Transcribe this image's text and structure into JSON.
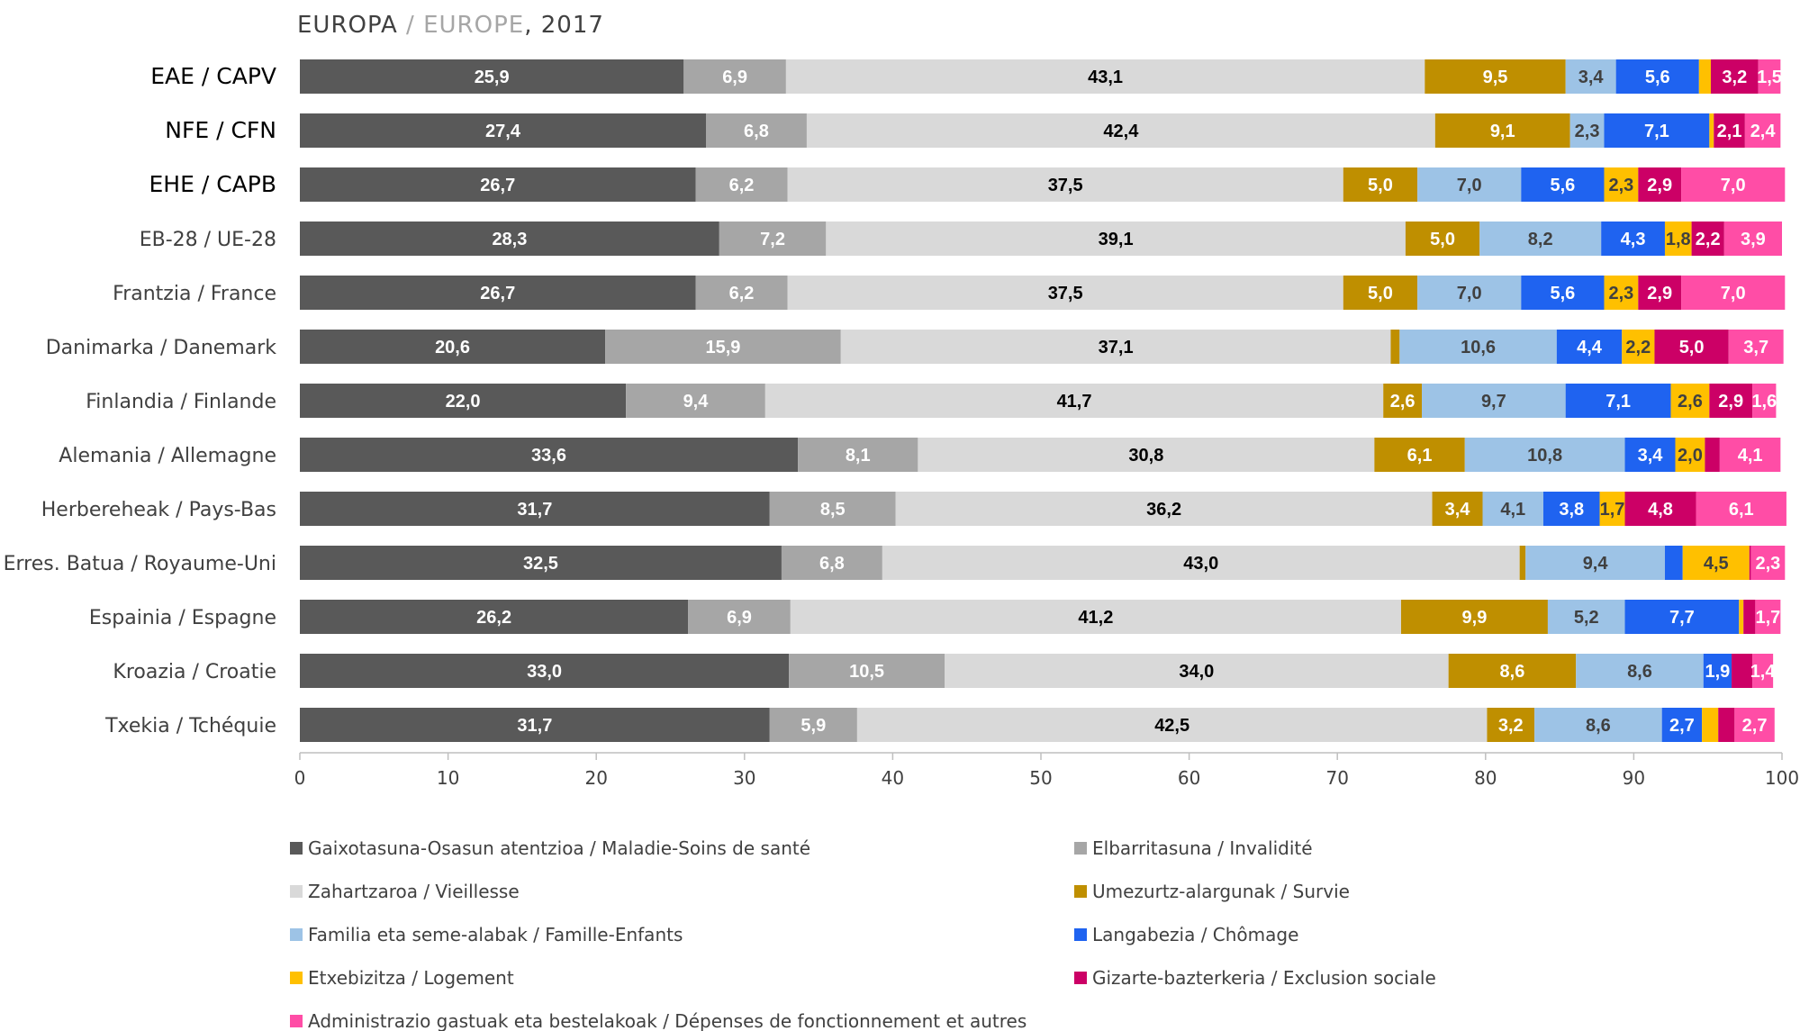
{
  "chart_data": {
    "type": "bar",
    "orientation": "horizontal",
    "stacked": true,
    "title_part1": "EUROPA",
    "title_sep": " / ",
    "title_part2": "EUROPE",
    "title_part3": ", 2017",
    "colors": {
      "title_main": "#404040",
      "title_secondary": "#a6a6a6",
      "axis": "#bfbfbf"
    },
    "xlim": [
      0,
      100
    ],
    "xticks": [
      "0",
      "10",
      "20",
      "30",
      "40",
      "50",
      "60",
      "70",
      "80",
      "90",
      "100"
    ],
    "grid": false,
    "legend_position": "bottom",
    "categories": [
      "EAE / CAPV",
      "NFE / CFN",
      "EHE / CAPB",
      "EB-28 / UE-28",
      "Frantzia / France",
      "Danimarka / Danemark",
      "Finlandia / Finlande",
      "Alemania / Allemagne",
      "Herbereheak / Pays-Bas",
      "Erres. Batua / Royaume-Uni",
      "Espainia / Espagne",
      "Kroazia / Croatie",
      "Txekia / Tchéquie"
    ],
    "bold_categories": [
      0,
      1,
      2
    ],
    "series": [
      {
        "name": "Gaixotasuna-Osasun atentzioa / Maladie-Soins de santé",
        "color": "#595959",
        "label_color": "#ffffff",
        "values": [
          25.9,
          27.4,
          26.7,
          28.3,
          26.7,
          20.6,
          22.0,
          33.6,
          31.7,
          32.5,
          26.2,
          33.0,
          31.7
        ],
        "labels": [
          "25,9",
          "27,4",
          "26,7",
          "28,3",
          "26,7",
          "20,6",
          "22,0",
          "33,6",
          "31,7",
          "32,5",
          "26,2",
          "33,0",
          "31,7"
        ]
      },
      {
        "name": "Elbarritasuna / Invalidité",
        "color": "#a6a6a6",
        "label_color": "#ffffff",
        "values": [
          6.9,
          6.8,
          6.2,
          7.2,
          6.2,
          15.9,
          9.4,
          8.1,
          8.5,
          6.8,
          6.9,
          10.5,
          5.9
        ],
        "labels": [
          "6,9",
          "6,8",
          "6,2",
          "7,2",
          "6,2",
          "15,9",
          "9,4",
          "8,1",
          "8,5",
          "6,8",
          "6,9",
          "10,5",
          "5,9"
        ]
      },
      {
        "name": "Zahartzaroa / Vieillesse",
        "color": "#d9d9d9",
        "label_color": "#000000",
        "values": [
          43.1,
          42.4,
          37.5,
          39.1,
          37.5,
          37.1,
          41.7,
          30.8,
          36.2,
          43.0,
          41.2,
          34.0,
          42.5
        ],
        "labels": [
          "43,1",
          "42,4",
          "37,5",
          "39,1",
          "37,5",
          "37,1",
          "41,7",
          "30,8",
          "36,2",
          "43,0",
          "41,2",
          "34,0",
          "42,5"
        ]
      },
      {
        "name": "Umezurtz-alargunak / Survie",
        "color": "#bf8f00",
        "label_color": "#ffffff",
        "values": [
          9.5,
          9.1,
          5.0,
          5.0,
          5.0,
          0.6,
          2.6,
          6.1,
          3.4,
          0.4,
          9.9,
          8.6,
          3.2
        ],
        "labels": [
          "9,5",
          "9,1",
          "5,0",
          "5,0",
          "5,0",
          "",
          "2,6",
          "6,1",
          "3,4",
          "",
          "9,9",
          "8,6",
          "3,2"
        ]
      },
      {
        "name": "Familia eta seme-alabak / Famille-Enfants",
        "color": "#9dc3e6",
        "label_color": "#404040",
        "values": [
          3.4,
          2.3,
          7.0,
          8.2,
          7.0,
          10.6,
          9.7,
          10.8,
          4.1,
          9.4,
          5.2,
          8.6,
          8.6
        ],
        "labels": [
          "3,4",
          "2,3",
          "7,0",
          "8,2",
          "7,0",
          "10,6",
          "9,7",
          "10,8",
          "4,1",
          "9,4",
          "5,2",
          "8,6",
          "8,6"
        ]
      },
      {
        "name": "Langabezia / Chômage",
        "color": "#1f63f0",
        "label_color": "#ffffff",
        "values": [
          5.6,
          7.1,
          5.6,
          4.3,
          5.6,
          4.4,
          7.1,
          3.4,
          3.8,
          1.2,
          7.7,
          1.9,
          2.7
        ],
        "labels": [
          "5,6",
          "7,1",
          "5,6",
          "4,3",
          "5,6",
          "4,4",
          "7,1",
          "3,4",
          "3,8",
          "",
          "7,7",
          "1,9",
          "2,7"
        ]
      },
      {
        "name": "Etxebizitza / Logement",
        "color": "#ffc000",
        "label_color": "#404040",
        "values": [
          0.8,
          0.3,
          2.3,
          1.8,
          2.3,
          2.2,
          2.6,
          2.0,
          1.7,
          4.5,
          0.3,
          0.0,
          1.1
        ],
        "labels": [
          "",
          "",
          "2,3",
          "1,8",
          "2,3",
          "2,2",
          "2,6",
          "2,0",
          "1,7",
          "4,5",
          "",
          "",
          ""
        ]
      },
      {
        "name": "Gizarte-bazterkeria / Exclusion sociale",
        "color": "#cc0066",
        "label_color": "#ffffff",
        "values": [
          3.2,
          2.1,
          2.9,
          2.2,
          2.9,
          5.0,
          2.9,
          1.0,
          4.8,
          0.1,
          0.8,
          1.4,
          1.1
        ],
        "labels": [
          "3,2",
          "2,1",
          "2,9",
          "2,2",
          "2,9",
          "5,0",
          "2,9",
          "",
          "4,8",
          "",
          "",
          "",
          ""
        ]
      },
      {
        "name": "Administrazio gastuak eta bestelakoak / Dépenses de fonctionnement et autres",
        "color": "#ff4da6",
        "label_color": "#ffffff",
        "values": [
          1.5,
          2.4,
          7.0,
          3.9,
          7.0,
          3.7,
          1.6,
          4.1,
          6.1,
          2.3,
          1.7,
          1.4,
          2.7
        ],
        "labels": [
          "1,5",
          "2,4",
          "7,0",
          "3,9",
          "7,0",
          "3,7",
          "1,6",
          "4,1",
          "6,1",
          "2,3",
          "1,7",
          "1,4",
          "2,7"
        ]
      }
    ]
  }
}
